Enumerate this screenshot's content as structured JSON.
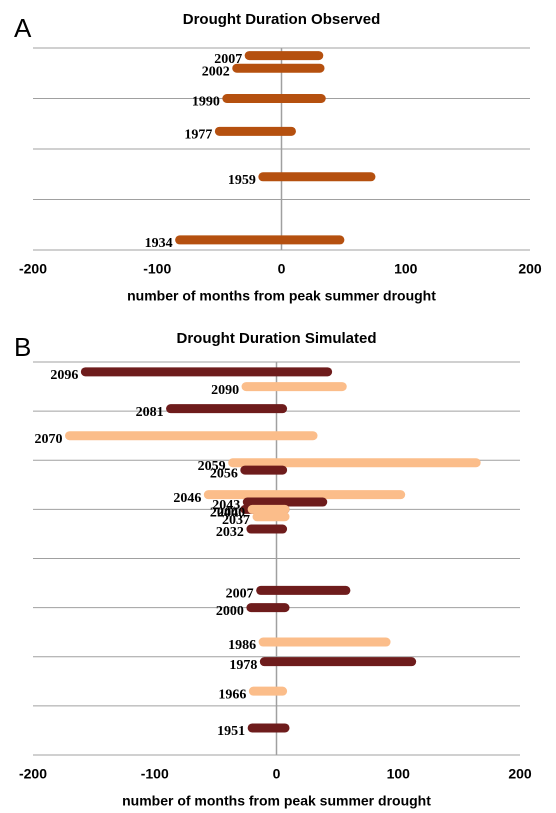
{
  "chart_data": [
    {
      "type": "range-bar",
      "panel_label": "A",
      "title": "Drought Duration Observed",
      "xlabel": "number of  months from peak summer drought",
      "xlim": [
        -200,
        200
      ],
      "xticks": [
        -200,
        -100,
        0,
        100,
        200
      ],
      "ylim": [
        1930,
        2010
      ],
      "ygrid": [
        1930,
        1950,
        1970,
        1990,
        2010
      ],
      "bars": [
        {
          "y": 2007,
          "start": -26,
          "end": 30,
          "color": "#b5500f"
        },
        {
          "y": 2002,
          "start": -36,
          "end": 31,
          "color": "#b5500f"
        },
        {
          "y": 1990,
          "start": -44,
          "end": 32,
          "color": "#b5500f"
        },
        {
          "y": 1977,
          "start": -50,
          "end": 8,
          "color": "#b5500f"
        },
        {
          "y": 1959,
          "start": -15,
          "end": 72,
          "color": "#b5500f"
        },
        {
          "y": 1934,
          "start": -82,
          "end": 47,
          "color": "#b5500f"
        }
      ]
    },
    {
      "type": "range-bar",
      "panel_label": "B",
      "title": "Drought Duration Simulated",
      "xlabel": "number of  months from peak summer drought",
      "xlim": [
        -200,
        200
      ],
      "xticks": [
        -200,
        -100,
        0,
        100,
        200
      ],
      "ylim": [
        1940,
        2100
      ],
      "ygrid": [
        1940,
        1960,
        1980,
        2000,
        2020,
        2040,
        2060,
        2080,
        2100
      ],
      "bars": [
        {
          "y": 2096,
          "start": -157,
          "end": 42,
          "color": "#6e1c1c"
        },
        {
          "y": 2090,
          "start": -25,
          "end": 54,
          "color": "#fbbd8a"
        },
        {
          "y": 2081,
          "start": -87,
          "end": 5,
          "color": "#6e1c1c"
        },
        {
          "y": 2070,
          "start": -170,
          "end": 30,
          "color": "#fbbd8a"
        },
        {
          "y": 2059,
          "start": -36,
          "end": 164,
          "color": "#fbbd8a"
        },
        {
          "y": 2056,
          "start": -26,
          "end": 5,
          "color": "#6e1c1c"
        },
        {
          "y": 2046,
          "start": -56,
          "end": 102,
          "color": "#fbbd8a"
        },
        {
          "y": 2043,
          "start": -24,
          "end": 38,
          "color": "#6e1c1c"
        },
        {
          "y": 2040,
          "start": -26,
          "end": 7,
          "color": "#6e1c1c"
        },
        {
          "y": 2040,
          "start": -20,
          "end": 7,
          "color": "#fbbd8a"
        },
        {
          "y": 2037,
          "start": -16,
          "end": 7,
          "color": "#fbbd8a"
        },
        {
          "y": 2032,
          "start": -21,
          "end": 5,
          "color": "#6e1c1c"
        },
        {
          "y": 2007,
          "start": -13,
          "end": 57,
          "color": "#6e1c1c"
        },
        {
          "y": 2000,
          "start": -21,
          "end": 7,
          "color": "#6e1c1c"
        },
        {
          "y": 1986,
          "start": -11,
          "end": 90,
          "color": "#fbbd8a"
        },
        {
          "y": 1978,
          "start": -10,
          "end": 111,
          "color": "#6e1c1c"
        },
        {
          "y": 1966,
          "start": -19,
          "end": 5,
          "color": "#fbbd8a"
        },
        {
          "y": 1951,
          "start": -20,
          "end": 7,
          "color": "#6e1c1c"
        }
      ]
    }
  ]
}
